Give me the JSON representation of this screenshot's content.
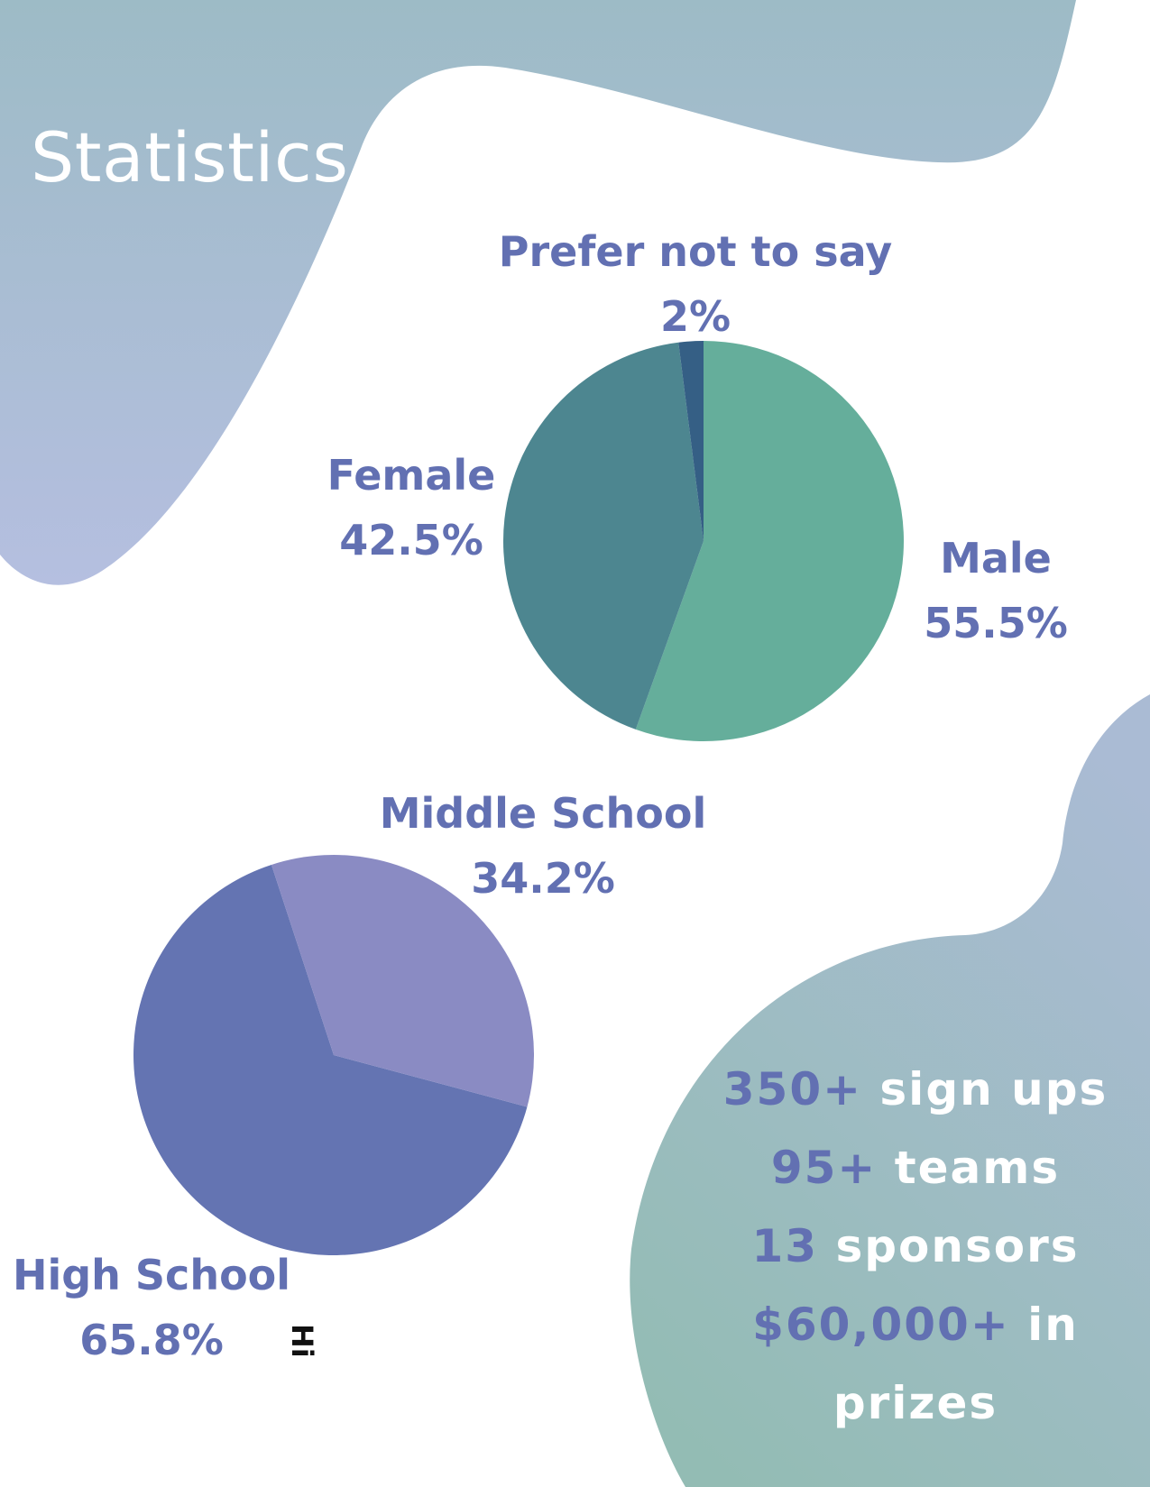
{
  "title": "Statistics",
  "colors": {
    "blob_top": "#9dbbc6",
    "blob_bottom": "#b5bfe0",
    "blob_stats_top": "#a9bbd3",
    "blob_stats_bottom": "#93bcb4",
    "label": "#6270b2",
    "male": "#65ae9b",
    "female": "#4d8690",
    "prefer_not_to_say": "#355f85",
    "high_school": "#6474b2",
    "middle_school": "#8a8bc3"
  },
  "chart_data": [
    {
      "type": "pie",
      "title": "",
      "slices": [
        {
          "label": "Male",
          "value_label": "55.5%",
          "value": 55.5,
          "color": "#65ae9b"
        },
        {
          "label": "Female",
          "value_label": "42.5%",
          "value": 42.5,
          "color": "#4d8690"
        },
        {
          "label": "Prefer not to say",
          "value_label": "2%",
          "value": 2,
          "color": "#355f85"
        }
      ],
      "start_angle_deg": 0,
      "direction": "clockwise"
    },
    {
      "type": "pie",
      "title": "",
      "slices": [
        {
          "label": "High School",
          "value_label": "65.8%",
          "value": 65.8,
          "color": "#6474b2"
        },
        {
          "label": "Middle School",
          "value_label": "34.2%",
          "value": 34.2,
          "color": "#8a8bc3"
        }
      ],
      "start_angle_deg": 105,
      "direction": "clockwise"
    }
  ],
  "stats": [
    {
      "value": "350+",
      "text": "sign ups"
    },
    {
      "value": "95+",
      "text": "teams"
    },
    {
      "value": "13",
      "text": "sponsors"
    },
    {
      "value": "$60,000+",
      "text": "in"
    },
    {
      "value": "",
      "text": "prizes"
    }
  ],
  "stray_text": "Hi"
}
